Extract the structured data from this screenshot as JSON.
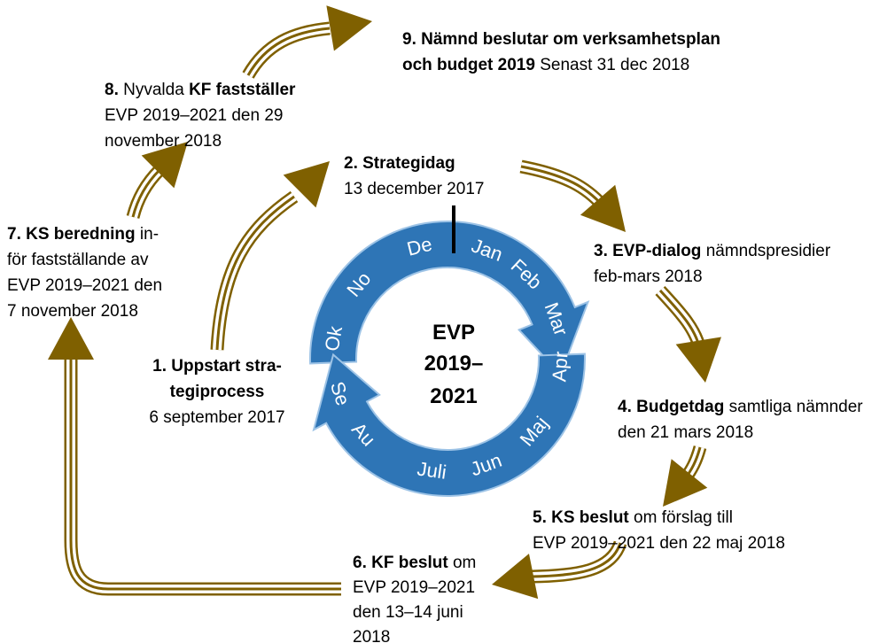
{
  "center": {
    "lines": [
      "EVP",
      "2019–",
      "2021"
    ]
  },
  "months": [
    "Ok",
    "No",
    "De",
    "Jan",
    "Feb",
    "Mar",
    "Apr",
    "Maj",
    "Jun",
    "Juli",
    "Au",
    "Se"
  ],
  "steps": [
    {
      "align": "middle",
      "lines": [
        [
          {
            "text": "1. Uppstart stra-",
            "bold": true
          }
        ],
        [
          {
            "text": "tegiprocess",
            "bold": true
          }
        ],
        [
          {
            "text": "6 september 2017",
            "bold": false
          }
        ]
      ]
    },
    {
      "align": "start",
      "lines": [
        [
          {
            "text": "2. Strategidag",
            "bold": true
          }
        ],
        [
          {
            "text": "13 december 2017",
            "bold": false
          }
        ]
      ]
    },
    {
      "align": "start",
      "lines": [
        [
          {
            "text": "3. EVP-dialog",
            "bold": true
          },
          {
            "text": " nämndspresidier",
            "bold": false
          }
        ],
        [
          {
            "text": "feb-mars 2018",
            "bold": false
          }
        ]
      ]
    },
    {
      "align": "start",
      "lines": [
        [
          {
            "text": "4. Budgetdag",
            "bold": true
          },
          {
            "text": " samtliga nämnder",
            "bold": false
          }
        ],
        [
          {
            "text": "den 21 mars 2018",
            "bold": false
          }
        ]
      ]
    },
    {
      "align": "start",
      "lines": [
        [
          {
            "text": "5. KS beslut",
            "bold": true
          },
          {
            "text": " om förslag till",
            "bold": false
          }
        ],
        [
          {
            "text": "EVP 2019–2021 den 22 maj 2018",
            "bold": false
          }
        ]
      ]
    },
    {
      "align": "start",
      "lines": [
        [
          {
            "text": "6. KF beslut",
            "bold": true
          },
          {
            "text": " om",
            "bold": false
          }
        ],
        [
          {
            "text": "EVP 2019–2021",
            "bold": false
          }
        ],
        [
          {
            "text": "den 13–14 juni",
            "bold": false
          }
        ],
        [
          {
            "text": "2018",
            "bold": false
          }
        ]
      ]
    },
    {
      "align": "start",
      "lines": [
        [
          {
            "text": "7. KS beredning",
            "bold": true
          },
          {
            "text": " in-",
            "bold": false
          }
        ],
        [
          {
            "text": "för fastställande av",
            "bold": false
          }
        ],
        [
          {
            "text": "EVP 2019–2021 den",
            "bold": false
          }
        ],
        [
          {
            "text": "7 november 2018",
            "bold": false
          }
        ]
      ]
    },
    {
      "align": "start",
      "lines": [
        [
          {
            "text": "8.",
            "bold": true
          },
          {
            "text": " Nyvalda ",
            "bold": false
          },
          {
            "text": "KF fastställer",
            "bold": true
          }
        ],
        [
          {
            "text": "EVP 2019–2021 den 29",
            "bold": false
          }
        ],
        [
          {
            "text": "november 2018",
            "bold": false
          }
        ]
      ]
    },
    {
      "align": "start",
      "lines": [
        [
          {
            "text": "9. Nämnd beslutar om verksamhetsplan",
            "bold": true
          }
        ],
        [
          {
            "text": "och budget 2019",
            "bold": true
          },
          {
            "text": " Senast 31 dec 2018",
            "bold": false
          }
        ]
      ]
    }
  ]
}
